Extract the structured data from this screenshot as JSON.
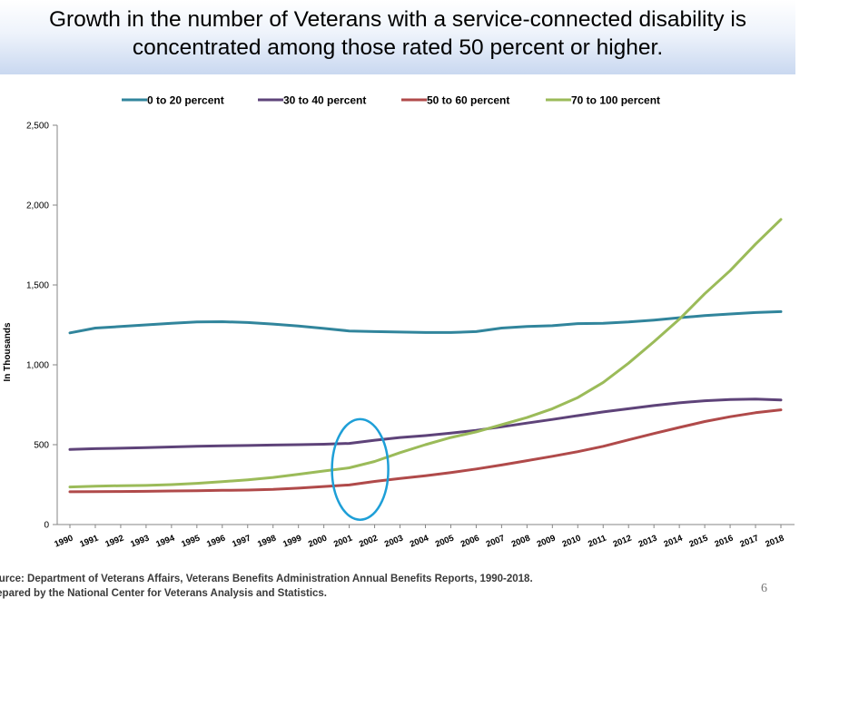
{
  "slide": {
    "title_line1": "Growth in the number of Veterans with a service-connected disability is",
    "title_line2": "concentrated among those rated 50 percent or higher.",
    "source_line1": "Source: Department of Veterans Affairs, Veterans Benefits Administration Annual Benefits Reports, 1990-2018.",
    "source_line2": "Prepared by the National Center for Veterans Analysis and Statistics.",
    "page_number": "6"
  },
  "chart_data": {
    "type": "line",
    "title": "",
    "xlabel": "",
    "ylabel": "In Thousands",
    "ylim": [
      0,
      2500
    ],
    "yticks": [
      0,
      500,
      1000,
      1500,
      2000,
      2500
    ],
    "ytick_labels": [
      "0",
      "500",
      "1,000",
      "1,500",
      "2,000",
      "2,500"
    ],
    "grid": false,
    "legend_position": "top",
    "x": [
      "1990",
      "1991",
      "1992",
      "1993",
      "1994",
      "1995",
      "1996",
      "1997",
      "1998",
      "1999",
      "2000",
      "2001",
      "2002",
      "2003",
      "2004",
      "2005",
      "2006",
      "2007",
      "2008",
      "2009",
      "2010",
      "2011",
      "2012",
      "2013",
      "2014",
      "2015",
      "2016",
      "2017",
      "2018"
    ],
    "series": [
      {
        "name": "0 to 20 percent",
        "color": "#31859c",
        "values": [
          1200,
          1230,
          1240,
          1250,
          1260,
          1268,
          1270,
          1265,
          1255,
          1243,
          1228,
          1212,
          1208,
          1205,
          1202,
          1202,
          1208,
          1230,
          1240,
          1245,
          1258,
          1260,
          1268,
          1280,
          1295,
          1308,
          1318,
          1327,
          1333
        ]
      },
      {
        "name": "30 to 40 percent",
        "color": "#5e4379",
        "values": [
          470,
          475,
          478,
          482,
          486,
          490,
          493,
          495,
          498,
          500,
          503,
          508,
          528,
          545,
          557,
          572,
          590,
          612,
          635,
          658,
          682,
          705,
          725,
          745,
          762,
          775,
          783,
          785,
          780
        ]
      },
      {
        "name": "50 to 60 percent",
        "color": "#b04a4a",
        "values": [
          205,
          206,
          207,
          208,
          210,
          212,
          214,
          216,
          220,
          228,
          238,
          248,
          270,
          288,
          305,
          325,
          348,
          373,
          400,
          427,
          456,
          490,
          530,
          570,
          608,
          645,
          675,
          700,
          718
        ]
      },
      {
        "name": "70 to 100 percent",
        "color": "#9bbb59",
        "values": [
          235,
          240,
          243,
          245,
          250,
          258,
          268,
          280,
          295,
          315,
          335,
          355,
          395,
          450,
          500,
          545,
          580,
          625,
          670,
          725,
          795,
          890,
          1010,
          1145,
          1285,
          1445,
          1590,
          1755,
          1910
        ]
      }
    ],
    "annotation": {
      "type": "ellipse",
      "color": "#1e9fd7",
      "x_center": "2001",
      "y_min": 30,
      "y_max": 660
    }
  }
}
